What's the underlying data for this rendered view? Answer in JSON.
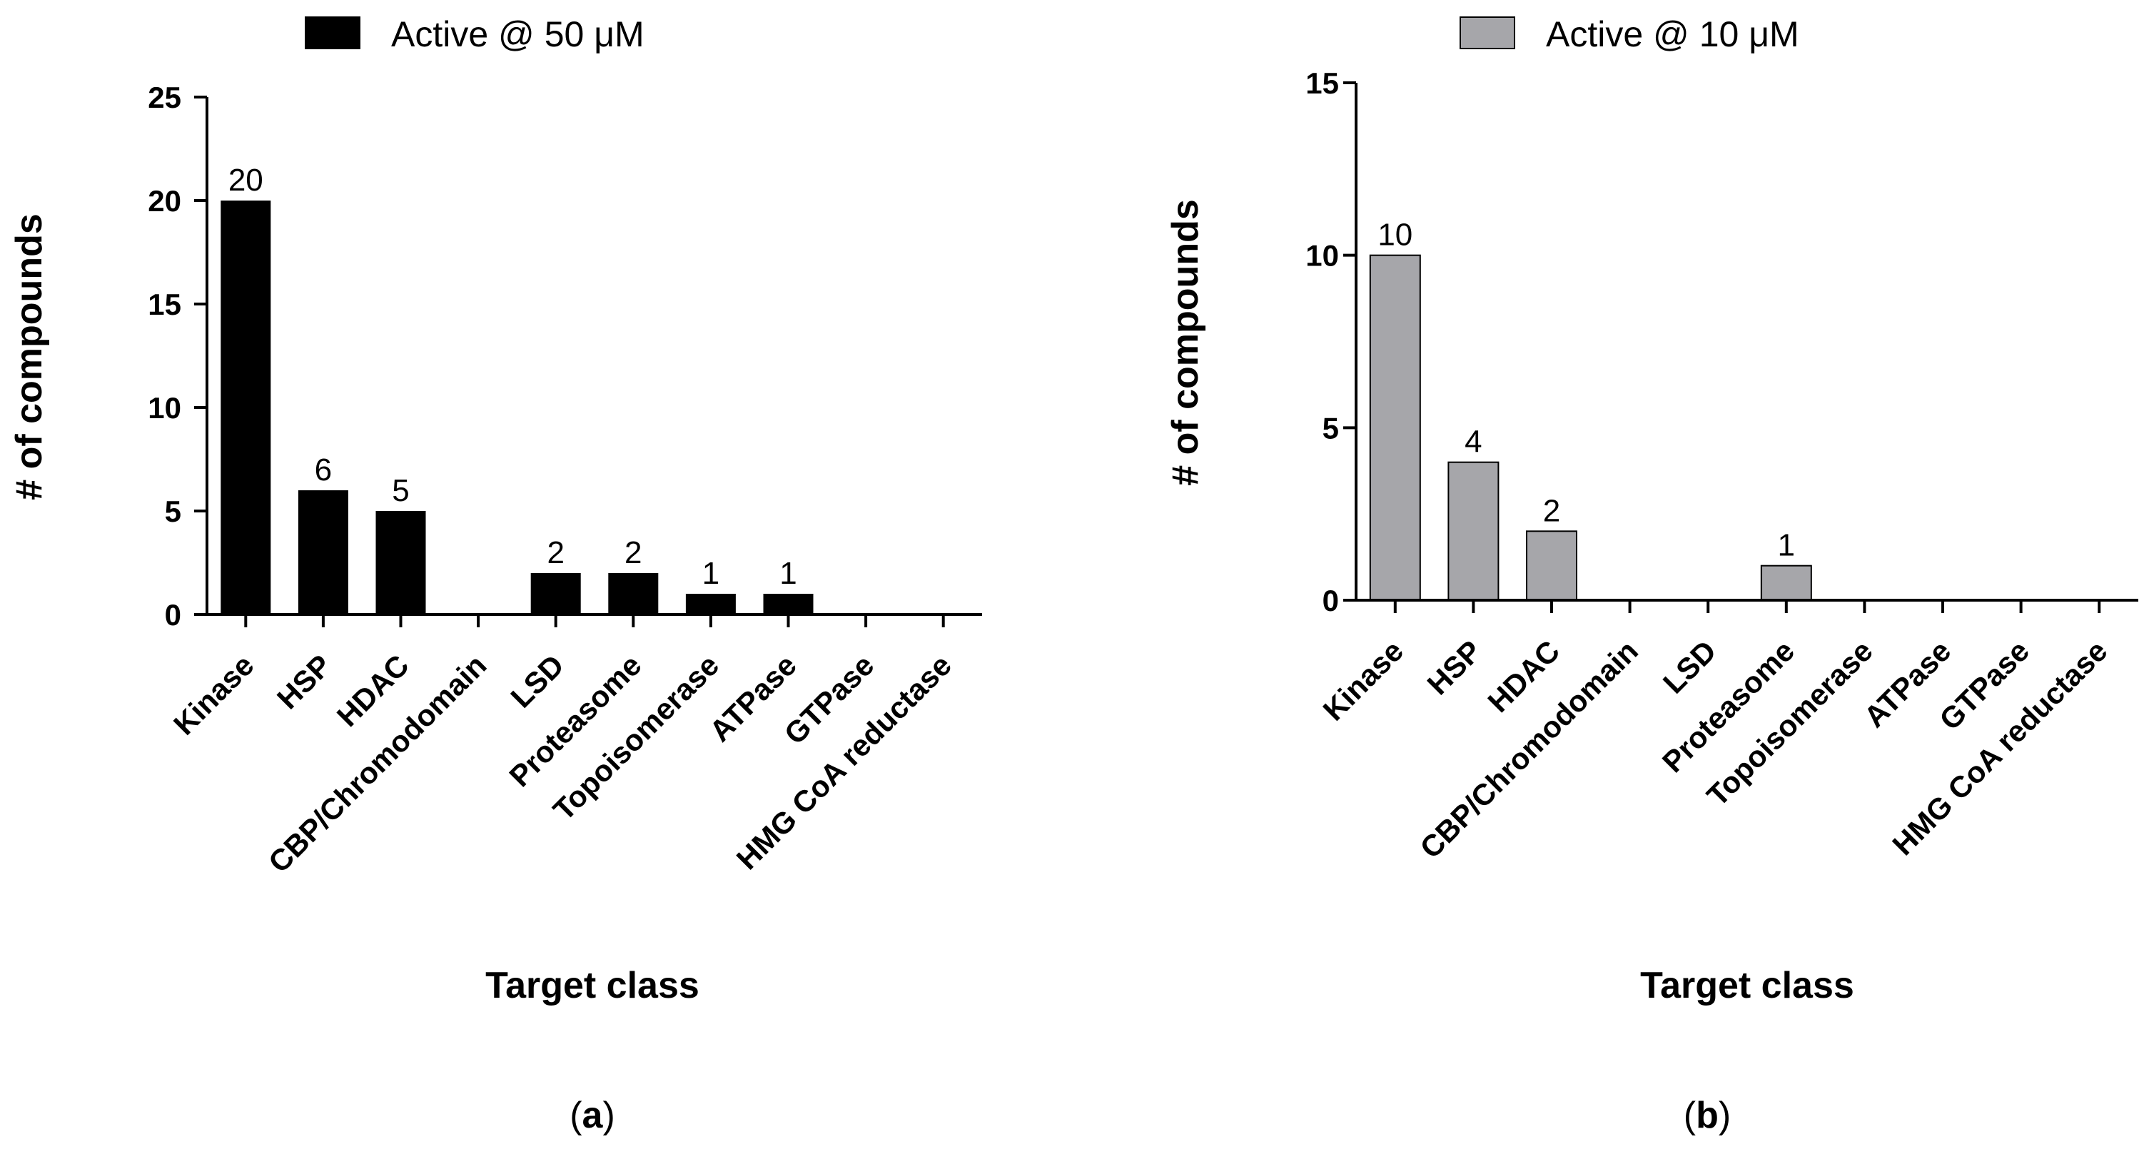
{
  "chart_data": [
    {
      "type": "bar",
      "panel_label": "a",
      "legend": {
        "label": "Active @ 50 μM",
        "color": "#000000"
      },
      "categories": [
        "Kinase",
        "HSP",
        "HDAC",
        "CBP/Chromodomain",
        "LSD",
        "Proteasome",
        "Topoisomerase",
        "ATPase",
        "GTPase",
        "HMG CoA reductase"
      ],
      "values": [
        20,
        6,
        5,
        0,
        2,
        2,
        1,
        1,
        0,
        0
      ],
      "data_labels": [
        "20",
        "6",
        "5",
        "",
        "2",
        "2",
        "1",
        "1",
        "",
        ""
      ],
      "xlabel": "Target class",
      "ylabel": "# of compounds",
      "ylim": [
        0,
        25
      ],
      "yticks": [
        0,
        5,
        10,
        15,
        20,
        25
      ],
      "ytick_labels": [
        "0",
        "5",
        "10",
        "15",
        "20",
        "25"
      ]
    },
    {
      "type": "bar",
      "panel_label": "b",
      "legend": {
        "label": "Active @ 10 μM",
        "color": "#a6a6aa"
      },
      "categories": [
        "Kinase",
        "HSP",
        "HDAC",
        "CBP/Chromodomain",
        "LSD",
        "Proteasome",
        "Topoisomerase",
        "ATPase",
        "GTPase",
        "HMG CoA reductase"
      ],
      "values": [
        10,
        4,
        2,
        0,
        0,
        1,
        0,
        0,
        0,
        0
      ],
      "data_labels": [
        "10",
        "4",
        "2",
        "",
        "",
        "1",
        "",
        "",
        "",
        ""
      ],
      "xlabel": "Target class",
      "ylabel": "# of compounds",
      "ylim": [
        0,
        15
      ],
      "yticks": [
        0,
        5,
        10,
        15
      ],
      "ytick_labels": [
        "0",
        "5",
        "10",
        "15"
      ]
    }
  ]
}
